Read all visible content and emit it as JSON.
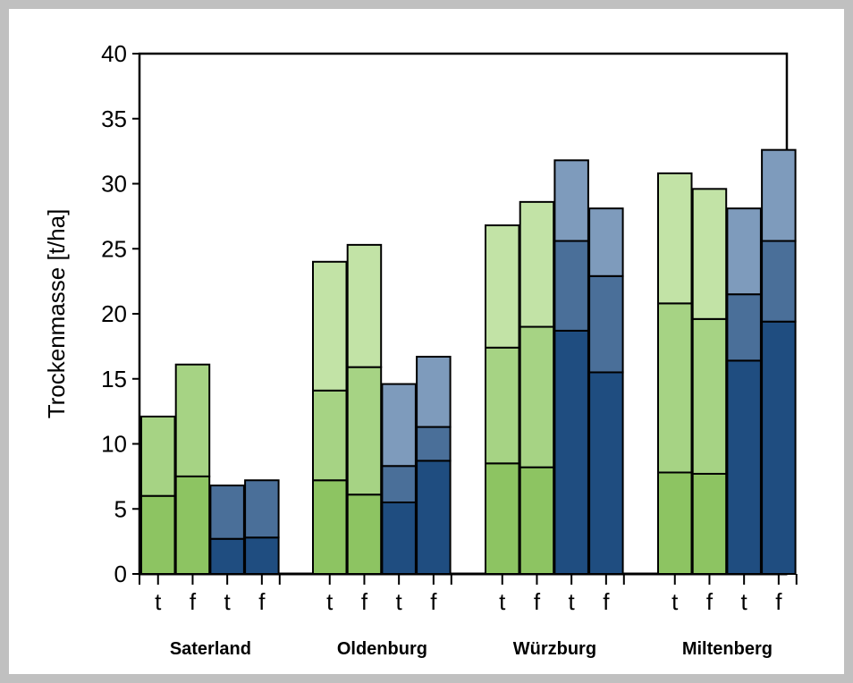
{
  "chart_data": {
    "type": "bar",
    "stacked": true,
    "ylabel": "Trockenmasse [t/ha]",
    "xlabel": "",
    "ylim": [
      0,
      40
    ],
    "yticks": [
      0,
      5,
      10,
      15,
      20,
      25,
      30,
      35,
      40
    ],
    "grid": false,
    "groups": [
      {
        "site": "Saterland",
        "bars": [
          {
            "label": "t",
            "scheme": "green",
            "segments": [
              6.0,
              6.1
            ]
          },
          {
            "label": "f",
            "scheme": "green",
            "segments": [
              7.5,
              8.6
            ]
          },
          {
            "label": "t",
            "scheme": "blue",
            "segments": [
              2.7,
              4.1
            ]
          },
          {
            "label": "f",
            "scheme": "blue",
            "segments": [
              2.8,
              4.4
            ]
          }
        ]
      },
      {
        "site": "Oldenburg",
        "bars": [
          {
            "label": "t",
            "scheme": "green",
            "segments": [
              7.2,
              6.9,
              9.9
            ]
          },
          {
            "label": "f",
            "scheme": "green",
            "segments": [
              6.1,
              9.8,
              9.4
            ]
          },
          {
            "label": "t",
            "scheme": "blue",
            "segments": [
              5.5,
              2.8,
              6.3
            ]
          },
          {
            "label": "f",
            "scheme": "blue",
            "segments": [
              8.7,
              2.6,
              5.4
            ]
          }
        ]
      },
      {
        "site": "Würzburg",
        "bars": [
          {
            "label": "t",
            "scheme": "green",
            "segments": [
              8.5,
              8.9,
              9.4
            ]
          },
          {
            "label": "f",
            "scheme": "green",
            "segments": [
              8.2,
              10.8,
              9.6
            ]
          },
          {
            "label": "t",
            "scheme": "blue",
            "segments": [
              18.7,
              6.9,
              6.2
            ]
          },
          {
            "label": "f",
            "scheme": "blue",
            "segments": [
              15.5,
              7.4,
              5.2
            ]
          }
        ]
      },
      {
        "site": "Miltenberg",
        "bars": [
          {
            "label": "t",
            "scheme": "green",
            "segments": [
              7.8,
              13.0,
              10.0
            ]
          },
          {
            "label": "f",
            "scheme": "green",
            "segments": [
              7.7,
              11.9,
              10.0
            ]
          },
          {
            "label": "t",
            "scheme": "blue",
            "segments": [
              16.4,
              5.1,
              6.6
            ]
          },
          {
            "label": "f",
            "scheme": "blue",
            "segments": [
              19.4,
              6.2,
              7.0
            ]
          }
        ]
      }
    ],
    "colors": {
      "green": [
        "#8dc462",
        "#a6d384",
        "#c2e3a6"
      ],
      "blue": [
        "#1f4d80",
        "#4a6f99",
        "#7e9bbc"
      ],
      "stroke": "#000000"
    }
  }
}
